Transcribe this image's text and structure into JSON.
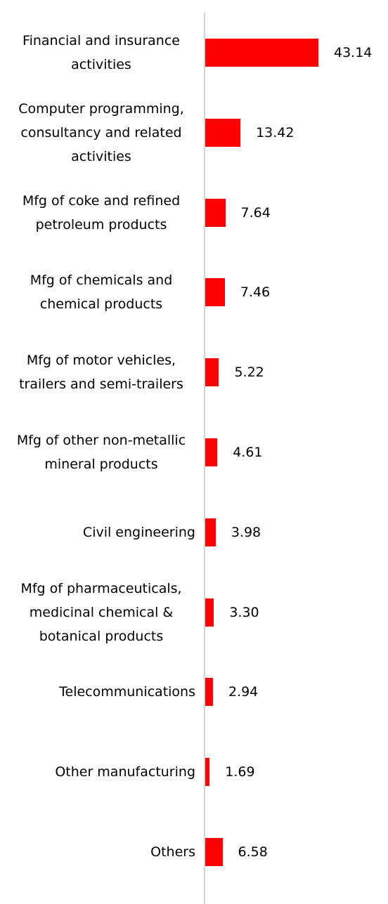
{
  "chart_data": {
    "type": "bar",
    "orientation": "horizontal",
    "categories": [
      "Financial and insurance activities",
      "Computer programming, consultancy and related activities",
      "Mfg of coke and refined petroleum products",
      "Mfg of chemicals and chemical products",
      "Mfg of motor vehicles, trailers and semi-trailers",
      "Mfg of other non-metallic mineral products",
      "Civil engineering",
      "Mfg of pharmaceuticals, medicinal chemical & botanical products",
      "Telecommunications",
      "Other manufacturing",
      "Others"
    ],
    "values": [
      43.14,
      13.42,
      7.64,
      7.46,
      5.22,
      4.61,
      3.98,
      3.3,
      2.94,
      1.69,
      6.58
    ],
    "value_labels": [
      "43.14",
      "13.42",
      "7.64",
      "7.46",
      "5.22",
      "4.61",
      "3.98",
      "3.30",
      "2.94",
      "1.69",
      "6.58"
    ],
    "color": "#ff0000"
  }
}
